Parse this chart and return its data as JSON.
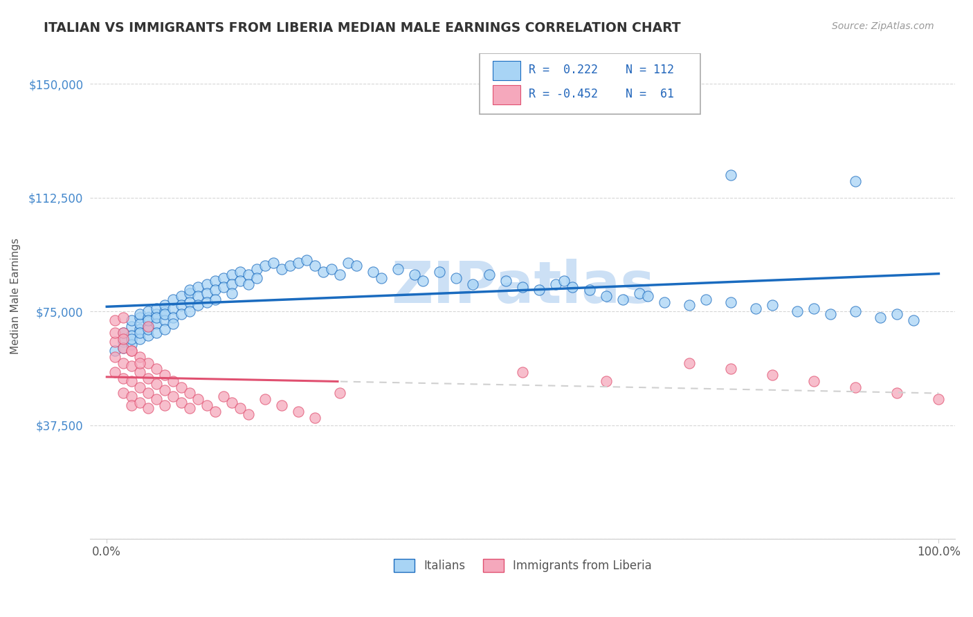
{
  "title": "ITALIAN VS IMMIGRANTS FROM LIBERIA MEDIAN MALE EARNINGS CORRELATION CHART",
  "source_text": "Source: ZipAtlas.com",
  "ylabel": "Median Male Earnings",
  "xlim": [
    -0.02,
    1.02
  ],
  "ylim": [
    0,
    160000
  ],
  "yticks": [
    0,
    37500,
    75000,
    112500,
    150000
  ],
  "ytick_labels": [
    "",
    "$37,500",
    "$75,000",
    "$112,500",
    "$150,000"
  ],
  "color_italian": "#a8d4f5",
  "color_liberia": "#f5a8bc",
  "color_line_italian": "#1a6bbf",
  "color_line_liberia": "#e05070",
  "color_line_liberia_dash": "#d0d0d0",
  "background_color": "#ffffff",
  "title_color": "#333333",
  "axis_label_color": "#555555",
  "ytick_color": "#4488cc",
  "watermark_color": "#cce0f5",
  "italian_x": [
    0.01,
    0.02,
    0.02,
    0.02,
    0.03,
    0.03,
    0.03,
    0.03,
    0.03,
    0.04,
    0.04,
    0.04,
    0.04,
    0.04,
    0.04,
    0.05,
    0.05,
    0.05,
    0.05,
    0.05,
    0.05,
    0.06,
    0.06,
    0.06,
    0.06,
    0.06,
    0.07,
    0.07,
    0.07,
    0.07,
    0.07,
    0.08,
    0.08,
    0.08,
    0.08,
    0.09,
    0.09,
    0.09,
    0.1,
    0.1,
    0.1,
    0.1,
    0.11,
    0.11,
    0.11,
    0.12,
    0.12,
    0.12,
    0.13,
    0.13,
    0.13,
    0.14,
    0.14,
    0.15,
    0.15,
    0.15,
    0.16,
    0.16,
    0.17,
    0.17,
    0.18,
    0.18,
    0.19,
    0.2,
    0.21,
    0.22,
    0.23,
    0.24,
    0.25,
    0.26,
    0.27,
    0.28,
    0.29,
    0.3,
    0.32,
    0.33,
    0.35,
    0.37,
    0.38,
    0.4,
    0.42,
    0.44,
    0.46,
    0.48,
    0.5,
    0.52,
    0.54,
    0.55,
    0.56,
    0.58,
    0.6,
    0.62,
    0.64,
    0.65,
    0.67,
    0.7,
    0.72,
    0.75,
    0.78,
    0.8,
    0.83,
    0.85,
    0.87,
    0.9,
    0.93,
    0.95,
    0.97,
    0.75,
    0.9
  ],
  "italian_y": [
    62000,
    65000,
    68000,
    63000,
    70000,
    67000,
    64000,
    72000,
    66000,
    69000,
    73000,
    66000,
    71000,
    68000,
    74000,
    70000,
    73000,
    67000,
    75000,
    69000,
    72000,
    74000,
    71000,
    68000,
    76000,
    73000,
    75000,
    72000,
    69000,
    77000,
    74000,
    76000,
    73000,
    79000,
    71000,
    80000,
    77000,
    74000,
    81000,
    78000,
    75000,
    82000,
    83000,
    80000,
    77000,
    84000,
    81000,
    78000,
    85000,
    82000,
    79000,
    86000,
    83000,
    87000,
    84000,
    81000,
    88000,
    85000,
    87000,
    84000,
    89000,
    86000,
    90000,
    91000,
    89000,
    90000,
    91000,
    92000,
    90000,
    88000,
    89000,
    87000,
    91000,
    90000,
    88000,
    86000,
    89000,
    87000,
    85000,
    88000,
    86000,
    84000,
    87000,
    85000,
    83000,
    82000,
    84000,
    85000,
    83000,
    82000,
    80000,
    79000,
    81000,
    80000,
    78000,
    77000,
    79000,
    78000,
    76000,
    77000,
    75000,
    76000,
    74000,
    75000,
    73000,
    74000,
    72000,
    120000,
    118000
  ],
  "liberia_x": [
    0.01,
    0.01,
    0.01,
    0.01,
    0.01,
    0.02,
    0.02,
    0.02,
    0.02,
    0.02,
    0.02,
    0.03,
    0.03,
    0.03,
    0.03,
    0.03,
    0.04,
    0.04,
    0.04,
    0.04,
    0.05,
    0.05,
    0.05,
    0.05,
    0.06,
    0.06,
    0.06,
    0.07,
    0.07,
    0.07,
    0.08,
    0.08,
    0.09,
    0.09,
    0.1,
    0.1,
    0.11,
    0.12,
    0.13,
    0.14,
    0.15,
    0.16,
    0.17,
    0.19,
    0.21,
    0.23,
    0.25,
    0.28,
    0.5,
    0.6,
    0.7,
    0.75,
    0.8,
    0.85,
    0.9,
    0.95,
    1.0,
    0.02,
    0.03,
    0.04,
    0.05
  ],
  "liberia_y": [
    72000,
    65000,
    60000,
    55000,
    68000,
    63000,
    58000,
    53000,
    68000,
    48000,
    73000,
    57000,
    52000,
    47000,
    62000,
    44000,
    55000,
    50000,
    45000,
    60000,
    53000,
    48000,
    43000,
    58000,
    51000,
    46000,
    56000,
    49000,
    44000,
    54000,
    47000,
    52000,
    45000,
    50000,
    43000,
    48000,
    46000,
    44000,
    42000,
    47000,
    45000,
    43000,
    41000,
    46000,
    44000,
    42000,
    40000,
    48000,
    55000,
    52000,
    58000,
    56000,
    54000,
    52000,
    50000,
    48000,
    46000,
    66000,
    62000,
    58000,
    70000
  ]
}
